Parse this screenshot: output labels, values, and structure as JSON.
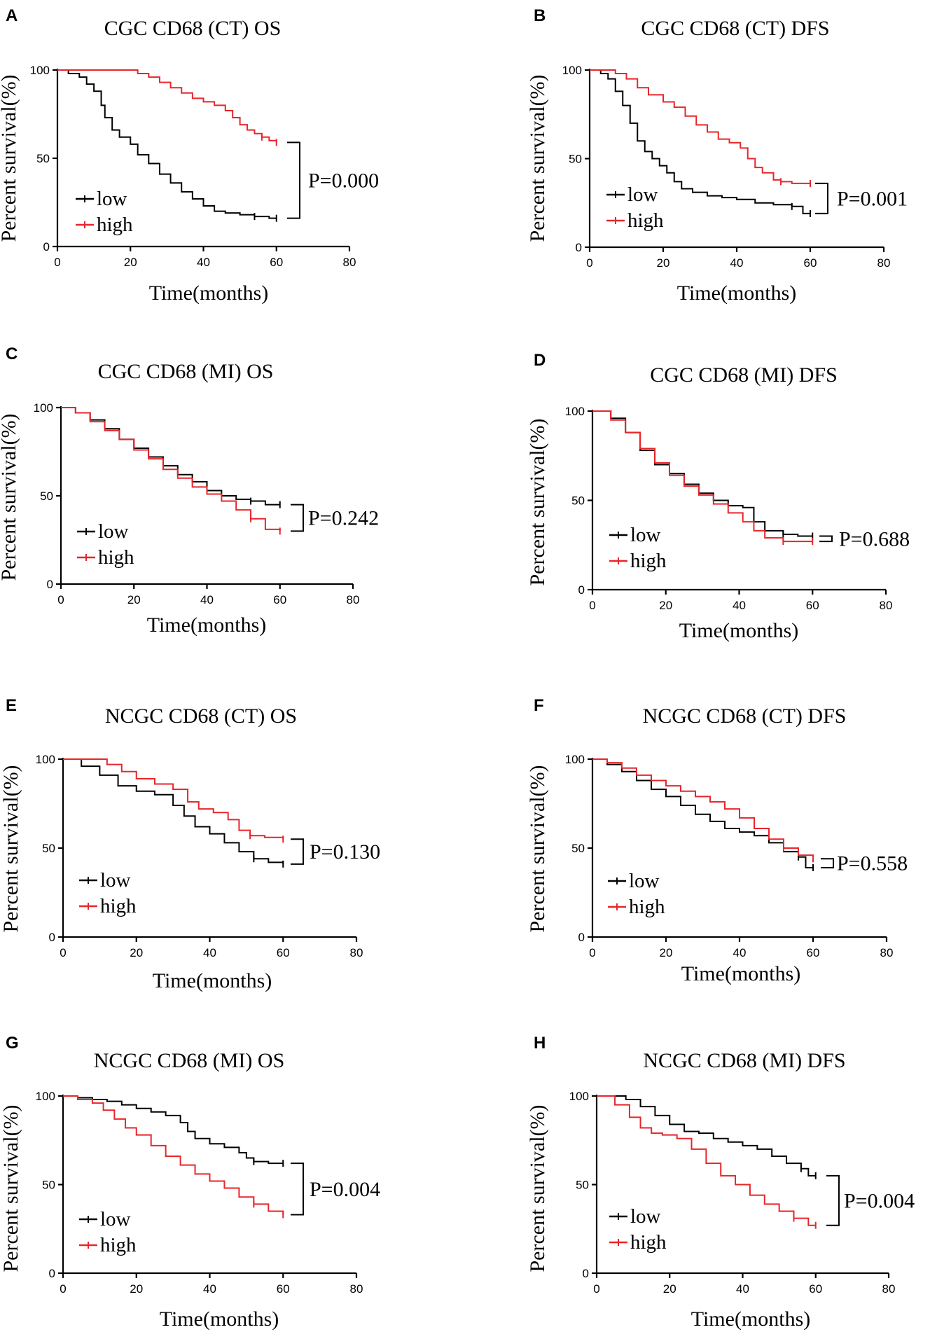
{
  "colors": {
    "low": "#000000",
    "high": "#e8262a"
  },
  "chart_data": [
    {
      "type": "line",
      "panel": "A",
      "title": "CGC CD68 (CT) OS",
      "xlabel": "Time(months)",
      "ylabel": "Percent survival(%)",
      "xlim": [
        0,
        80
      ],
      "ylim": [
        0,
        100
      ],
      "xticks": [
        "0",
        "20",
        "40",
        "60",
        "80"
      ],
      "yticks": [
        "0",
        "50",
        "100"
      ],
      "legend": [
        "low",
        "high"
      ],
      "pvalue": "P=0.000",
      "series": [
        {
          "name": "low",
          "x": [
            0,
            3,
            6,
            8,
            10,
            12,
            13,
            15,
            17,
            20,
            22,
            25,
            28,
            31,
            34,
            37,
            40,
            43,
            46,
            50,
            54,
            58,
            60
          ],
          "y": [
            100,
            98,
            96,
            92,
            88,
            80,
            73,
            66,
            62,
            58,
            52,
            47,
            41,
            36,
            31,
            27,
            23,
            20,
            19,
            18,
            17,
            16,
            16
          ]
        },
        {
          "name": "high",
          "x": [
            0,
            19,
            22,
            25,
            28,
            31,
            34,
            37,
            40,
            43,
            46,
            48,
            50,
            52,
            54,
            56,
            58,
            60
          ],
          "y": [
            100,
            100,
            98,
            96,
            93,
            90,
            87,
            84,
            82,
            80,
            77,
            73,
            69,
            66,
            64,
            62,
            60,
            59
          ]
        }
      ]
    },
    {
      "type": "line",
      "panel": "B",
      "title": "CGC CD68 (CT) DFS",
      "xlabel": "Time(months)",
      "ylabel": "Percent survival(%)",
      "xlim": [
        0,
        80
      ],
      "ylim": [
        0,
        100
      ],
      "xticks": [
        "0",
        "20",
        "40",
        "60",
        "80"
      ],
      "yticks": [
        "0",
        "50",
        "100"
      ],
      "legend": [
        "low",
        "high"
      ],
      "pvalue": "P=0.001",
      "series": [
        {
          "name": "low",
          "x": [
            0,
            3,
            5,
            7,
            9,
            11,
            13,
            15,
            17,
            19,
            21,
            23,
            25,
            28,
            32,
            36,
            40,
            45,
            50,
            55,
            58,
            60
          ],
          "y": [
            100,
            98,
            95,
            88,
            80,
            70,
            60,
            54,
            50,
            46,
            42,
            37,
            33,
            31,
            29,
            28,
            27,
            25,
            24,
            23,
            19,
            19
          ]
        },
        {
          "name": "high",
          "x": [
            0,
            7,
            10,
            13,
            16,
            20,
            23,
            26,
            29,
            32,
            35,
            38,
            41,
            43,
            45,
            47,
            50,
            52,
            55,
            60
          ],
          "y": [
            100,
            98,
            95,
            90,
            86,
            82,
            79,
            74,
            69,
            65,
            61,
            59,
            56,
            50,
            45,
            42,
            38,
            37,
            36,
            36
          ]
        }
      ]
    },
    {
      "type": "line",
      "panel": "C",
      "title": "CGC CD68 (MI) OS",
      "xlabel": "Time(months)",
      "ylabel": "Percent survival(%)",
      "xlim": [
        0,
        80
      ],
      "ylim": [
        0,
        100
      ],
      "xticks": [
        "0",
        "20",
        "40",
        "60",
        "80"
      ],
      "yticks": [
        "0",
        "50",
        "100"
      ],
      "legend": [
        "low",
        "high"
      ],
      "pvalue": "P=0.242",
      "series": [
        {
          "name": "low",
          "x": [
            0,
            4,
            8,
            12,
            16,
            20,
            24,
            28,
            32,
            36,
            40,
            44,
            48,
            52,
            56,
            60
          ],
          "y": [
            100,
            97,
            93,
            88,
            82,
            77,
            72,
            67,
            62,
            58,
            53,
            50,
            48,
            47,
            45,
            45
          ]
        },
        {
          "name": "high",
          "x": [
            0,
            4,
            8,
            12,
            16,
            20,
            24,
            28,
            32,
            36,
            40,
            44,
            48,
            52,
            56,
            60
          ],
          "y": [
            100,
            97,
            92,
            87,
            82,
            76,
            71,
            65,
            60,
            55,
            51,
            47,
            42,
            37,
            31,
            30
          ]
        }
      ]
    },
    {
      "type": "line",
      "panel": "D",
      "title": "CGC CD68 (MI) DFS",
      "xlabel": "Time(months)",
      "ylabel": "Percent survival(%)",
      "xlim": [
        0,
        80
      ],
      "ylim": [
        0,
        100
      ],
      "xticks": [
        "0",
        "20",
        "40",
        "60",
        "80"
      ],
      "yticks": [
        "0",
        "50",
        "100"
      ],
      "legend": [
        "low",
        "high"
      ],
      "pvalue": "P=0.688",
      "series": [
        {
          "name": "low",
          "x": [
            0,
            5,
            9,
            13,
            17,
            21,
            25,
            29,
            33,
            37,
            41,
            44,
            47,
            52,
            56,
            60
          ],
          "y": [
            100,
            96,
            88,
            78,
            70,
            65,
            59,
            54,
            50,
            47,
            46,
            38,
            33,
            31,
            30,
            30
          ]
        },
        {
          "name": "high",
          "x": [
            0,
            5,
            9,
            13,
            17,
            21,
            25,
            29,
            33,
            37,
            41,
            44,
            47,
            52,
            56,
            60
          ],
          "y": [
            100,
            95,
            88,
            79,
            71,
            64,
            58,
            53,
            48,
            43,
            38,
            33,
            29,
            27,
            27,
            27
          ]
        }
      ]
    },
    {
      "type": "line",
      "panel": "E",
      "title": "NCGC CD68 (CT) OS",
      "xlabel": "Time(months)",
      "ylabel": "Percent survival(%)",
      "xlim": [
        0,
        80
      ],
      "ylim": [
        0,
        100
      ],
      "xticks": [
        "0",
        "20",
        "40",
        "60",
        "80"
      ],
      "yticks": [
        "0",
        "50",
        "100"
      ],
      "legend": [
        "low",
        "high"
      ],
      "pvalue": "P=0.130",
      "series": [
        {
          "name": "low",
          "x": [
            0,
            5,
            10,
            15,
            20,
            25,
            30,
            33,
            36,
            40,
            44,
            48,
            52,
            56,
            60
          ],
          "y": [
            100,
            96,
            91,
            85,
            82,
            80,
            74,
            68,
            62,
            58,
            53,
            48,
            44,
            42,
            41
          ]
        },
        {
          "name": "high",
          "x": [
            0,
            8,
            12,
            16,
            20,
            25,
            30,
            34,
            37,
            41,
            45,
            48,
            51,
            55,
            60
          ],
          "y": [
            100,
            100,
            97,
            93,
            89,
            86,
            83,
            76,
            72,
            70,
            66,
            60,
            57,
            56,
            55
          ]
        }
      ]
    },
    {
      "type": "line",
      "panel": "F",
      "title": "NCGC CD68 (CT) DFS",
      "xlabel": "Time(months)",
      "ylabel": "Percent survival(%)",
      "xlim": [
        0,
        80
      ],
      "ylim": [
        0,
        100
      ],
      "xticks": [
        "0",
        "20",
        "40",
        "60",
        "80"
      ],
      "yticks": [
        "0",
        "50",
        "100"
      ],
      "legend": [
        "low",
        "high"
      ],
      "pvalue": "P=0.558",
      "series": [
        {
          "name": "low",
          "x": [
            0,
            4,
            8,
            12,
            16,
            20,
            24,
            28,
            32,
            36,
            40,
            44,
            48,
            52,
            56,
            58,
            60
          ],
          "y": [
            100,
            97,
            93,
            88,
            83,
            79,
            74,
            69,
            65,
            61,
            59,
            57,
            53,
            48,
            45,
            39,
            39
          ]
        },
        {
          "name": "high",
          "x": [
            0,
            4,
            8,
            12,
            16,
            20,
            24,
            28,
            32,
            36,
            40,
            44,
            48,
            52,
            56,
            60
          ],
          "y": [
            100,
            98,
            95,
            91,
            88,
            85,
            82,
            79,
            76,
            72,
            67,
            61,
            55,
            50,
            46,
            44
          ]
        }
      ]
    },
    {
      "type": "line",
      "panel": "G",
      "title": "NCGC CD68 (MI) OS",
      "xlabel": "Time(months)",
      "ylabel": "Percent survival(%)",
      "xlim": [
        0,
        80
      ],
      "ylim": [
        0,
        100
      ],
      "xticks": [
        "0",
        "20",
        "40",
        "60",
        "80"
      ],
      "yticks": [
        "0",
        "50",
        "100"
      ],
      "legend": [
        "low",
        "high"
      ],
      "pvalue": "P=0.004",
      "series": [
        {
          "name": "low",
          "x": [
            0,
            4,
            8,
            12,
            16,
            20,
            24,
            28,
            32,
            34,
            36,
            40,
            44,
            48,
            50,
            52,
            56,
            60
          ],
          "y": [
            100,
            99,
            98,
            97,
            95,
            93,
            91,
            89,
            85,
            80,
            76,
            73,
            71,
            68,
            65,
            63,
            62,
            62
          ]
        },
        {
          "name": "high",
          "x": [
            0,
            4,
            8,
            11,
            14,
            17,
            20,
            24,
            28,
            32,
            36,
            40,
            44,
            48,
            52,
            56,
            60
          ],
          "y": [
            100,
            98,
            96,
            92,
            87,
            82,
            78,
            72,
            66,
            61,
            56,
            52,
            48,
            43,
            39,
            35,
            33
          ]
        }
      ]
    },
    {
      "type": "line",
      "panel": "H",
      "title": "NCGC CD68 (MI) DFS",
      "xlabel": "Time(months)",
      "ylabel": "Percent survival(%)",
      "xlim": [
        0,
        80
      ],
      "ylim": [
        0,
        100
      ],
      "xticks": [
        "0",
        "20",
        "40",
        "60",
        "80"
      ],
      "yticks": [
        "0",
        "50",
        "100"
      ],
      "legend": [
        "low",
        "high"
      ],
      "pvalue": "P=0.004",
      "series": [
        {
          "name": "low",
          "x": [
            0,
            8,
            12,
            16,
            20,
            24,
            28,
            32,
            36,
            40,
            44,
            48,
            52,
            56,
            58,
            60
          ],
          "y": [
            100,
            98,
            94,
            89,
            84,
            80,
            79,
            76,
            74,
            72,
            70,
            66,
            62,
            59,
            55,
            55
          ]
        },
        {
          "name": "high",
          "x": [
            0,
            5,
            9,
            12,
            15,
            18,
            22,
            26,
            30,
            34,
            38,
            42,
            46,
            50,
            54,
            58,
            60
          ],
          "y": [
            100,
            95,
            88,
            82,
            79,
            78,
            76,
            70,
            62,
            55,
            50,
            44,
            39,
            35,
            31,
            27,
            27
          ]
        }
      ]
    }
  ]
}
